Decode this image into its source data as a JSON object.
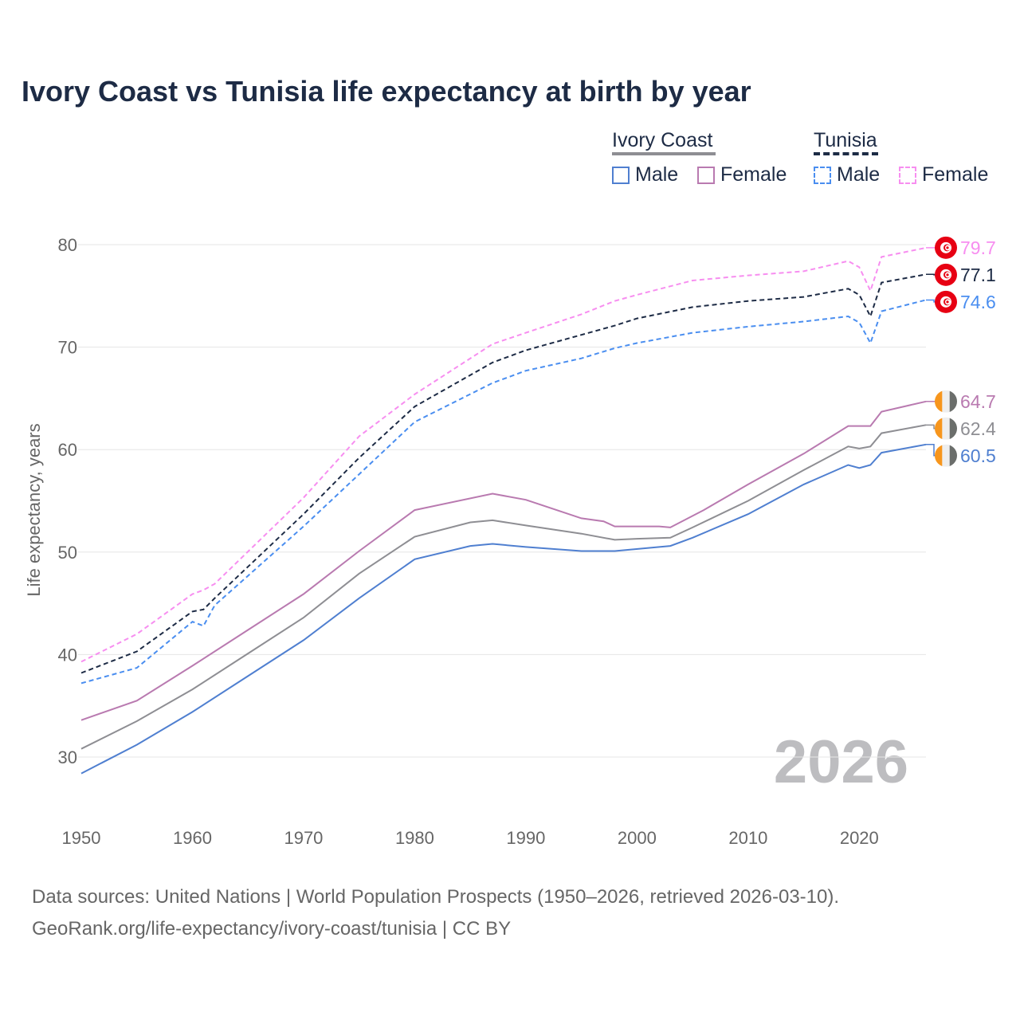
{
  "chart_data": {
    "type": "line",
    "title": "Ivory Coast vs Tunisia life expectancy at birth by year",
    "xlabel": "",
    "ylabel": "Life expectancy, years",
    "xlim": [
      1950,
      2026
    ],
    "ylim": [
      30,
      80
    ],
    "x_ticks": [
      "1950",
      "1960",
      "1970",
      "1980",
      "1990",
      "2000",
      "2010",
      "2020"
    ],
    "y_ticks": [
      "30",
      "40",
      "50",
      "60",
      "70",
      "80"
    ],
    "grid": true,
    "year_watermark": "2026",
    "legend": {
      "placement": "top-right",
      "groups": [
        {
          "label": "Ivory Coast",
          "items": [
            "Male",
            "Female"
          ]
        },
        {
          "label": "Tunisia",
          "items": [
            "Male",
            "Female"
          ]
        }
      ]
    },
    "series": [
      {
        "name": "Tunisia Female",
        "country": "Tunisia",
        "color": "#f78ef0",
        "dashed": true,
        "end_label": "79.7",
        "x": [
          1950,
          1955,
          1960,
          1961,
          1962,
          1970,
          1975,
          1980,
          1987,
          1990,
          1995,
          1998,
          2000,
          2005,
          2010,
          2015,
          2019,
          2020,
          2021,
          2022,
          2026
        ],
        "y": [
          39.3,
          42.0,
          45.9,
          46.3,
          46.9,
          55.3,
          61.3,
          65.4,
          70.3,
          71.4,
          73.2,
          74.5,
          75.1,
          76.5,
          77.0,
          77.4,
          78.4,
          77.8,
          75.5,
          78.8,
          79.7
        ]
      },
      {
        "name": "Tunisia Total",
        "country": "Tunisia",
        "color": "#1d2b45",
        "dashed": true,
        "end_label": "77.1",
        "x": [
          1950,
          1955,
          1960,
          1961,
          1962,
          1970,
          1975,
          1980,
          1987,
          1990,
          1995,
          1998,
          2000,
          2005,
          2010,
          2015,
          2019,
          2020,
          2021,
          2022,
          2026
        ],
        "y": [
          38.2,
          40.3,
          44.2,
          44.4,
          45.5,
          53.7,
          59.2,
          64.2,
          68.5,
          69.7,
          71.2,
          72.1,
          72.8,
          73.9,
          74.5,
          74.9,
          75.7,
          75.1,
          73.0,
          76.3,
          77.1
        ]
      },
      {
        "name": "Tunisia Male",
        "country": "Tunisia",
        "color": "#4a8ef0",
        "dashed": true,
        "end_label": "74.6",
        "x": [
          1950,
          1955,
          1960,
          1961,
          1962,
          1970,
          1975,
          1980,
          1987,
          1990,
          1995,
          1998,
          2000,
          2005,
          2010,
          2015,
          2019,
          2020,
          2021,
          2022,
          2026
        ],
        "y": [
          37.2,
          38.7,
          43.2,
          42.8,
          44.8,
          52.5,
          57.6,
          62.7,
          66.5,
          67.7,
          68.9,
          69.9,
          70.4,
          71.4,
          72.0,
          72.5,
          73.0,
          72.4,
          70.4,
          73.5,
          74.6
        ]
      },
      {
        "name": "Ivory Coast Female",
        "country": "Ivory Coast",
        "color": "#b97ab0",
        "dashed": false,
        "end_label": "64.7",
        "x": [
          1950,
          1955,
          1960,
          1965,
          1970,
          1975,
          1980,
          1987,
          1990,
          1995,
          1997,
          1998,
          2002,
          2003,
          2006,
          2010,
          2015,
          2019,
          2021,
          2022,
          2026
        ],
        "y": [
          33.6,
          35.5,
          38.9,
          42.4,
          45.9,
          50.1,
          54.1,
          55.7,
          55.1,
          53.3,
          53.0,
          52.5,
          52.5,
          52.4,
          54.1,
          56.6,
          59.6,
          62.3,
          62.3,
          63.7,
          64.7
        ]
      },
      {
        "name": "Ivory Coast Total",
        "country": "Ivory Coast",
        "color": "#8e8e93",
        "dashed": false,
        "end_label": "62.4",
        "x": [
          1950,
          1955,
          1960,
          1965,
          1970,
          1975,
          1980,
          1985,
          1987,
          1990,
          1995,
          1998,
          2000,
          2003,
          2005,
          2010,
          2015,
          2019,
          2020,
          2021,
          2022,
          2026
        ],
        "y": [
          30.8,
          33.5,
          36.6,
          40.1,
          43.6,
          47.9,
          51.5,
          52.9,
          53.1,
          52.6,
          51.8,
          51.2,
          51.3,
          51.4,
          52.4,
          55.0,
          58.0,
          60.3,
          60.1,
          60.3,
          61.6,
          62.4
        ]
      },
      {
        "name": "Ivory Coast Male",
        "country": "Ivory Coast",
        "color": "#4f7fd0",
        "dashed": false,
        "end_label": "60.5",
        "x": [
          1950,
          1955,
          1960,
          1965,
          1970,
          1975,
          1980,
          1985,
          1987,
          1990,
          1995,
          1998,
          2002,
          2003,
          2005,
          2010,
          2015,
          2019,
          2020,
          2021,
          2022,
          2026
        ],
        "y": [
          28.4,
          31.2,
          34.4,
          37.9,
          41.4,
          45.5,
          49.3,
          50.6,
          50.8,
          50.5,
          50.1,
          50.1,
          50.5,
          50.6,
          51.4,
          53.7,
          56.6,
          58.5,
          58.2,
          58.5,
          59.7,
          60.5
        ]
      }
    ]
  },
  "legend_colors": {
    "ivory_male": "#4f7fd0",
    "ivory_female": "#b97ab0",
    "ivory_group": "#8e8e93",
    "tunisia_male": "#4a8ef0",
    "tunisia_female": "#f78ef0",
    "tunisia_group": "#1d2b45"
  },
  "footer": {
    "line1": "Data sources: United Nations | World Population Prospects (1950–2026, retrieved 2026-03-10).",
    "line2": "GeoRank.org/life-expectancy/ivory-coast/tunisia | CC BY"
  }
}
